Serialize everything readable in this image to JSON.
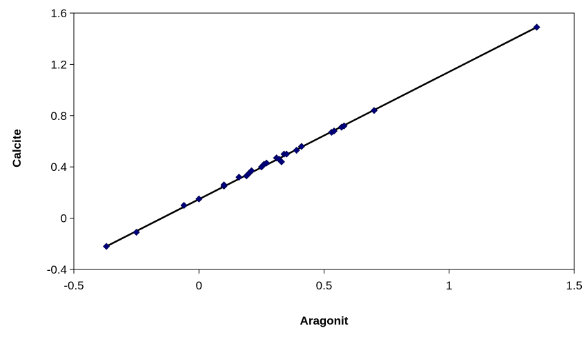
{
  "chart_data": {
    "type": "scatter",
    "title": "",
    "xlabel": "Aragonit",
    "ylabel": "Calcite",
    "xlim": [
      -0.5,
      1.5
    ],
    "ylim": [
      -0.4,
      1.6
    ],
    "x_ticks": [
      "-0.5",
      "0",
      "0.5",
      "1",
      "1.5"
    ],
    "y_ticks": [
      "-0.4",
      "0",
      "0.4",
      "0.8",
      "1.2",
      "1.6"
    ],
    "grid": false,
    "legend": "none",
    "marker": "diamond",
    "marker_color": "#000080",
    "trendline": {
      "type": "linear",
      "color": "#000000",
      "from": [
        -0.37,
        -0.22
      ],
      "to": [
        1.35,
        1.49
      ]
    },
    "series": [
      {
        "x": [
          -0.37,
          -0.25,
          -0.06,
          0.0,
          0.1,
          0.1,
          0.16,
          0.19,
          0.2,
          0.21,
          0.25,
          0.26,
          0.27,
          0.31,
          0.32,
          0.33,
          0.34,
          0.35,
          0.39,
          0.41,
          0.53,
          0.54,
          0.57,
          0.58,
          0.7,
          1.35
        ],
        "y": [
          -0.22,
          -0.11,
          0.1,
          0.15,
          0.25,
          0.26,
          0.32,
          0.33,
          0.35,
          0.37,
          0.4,
          0.42,
          0.43,
          0.47,
          0.46,
          0.44,
          0.5,
          0.5,
          0.53,
          0.56,
          0.67,
          0.68,
          0.71,
          0.72,
          0.84,
          1.49
        ]
      }
    ]
  }
}
